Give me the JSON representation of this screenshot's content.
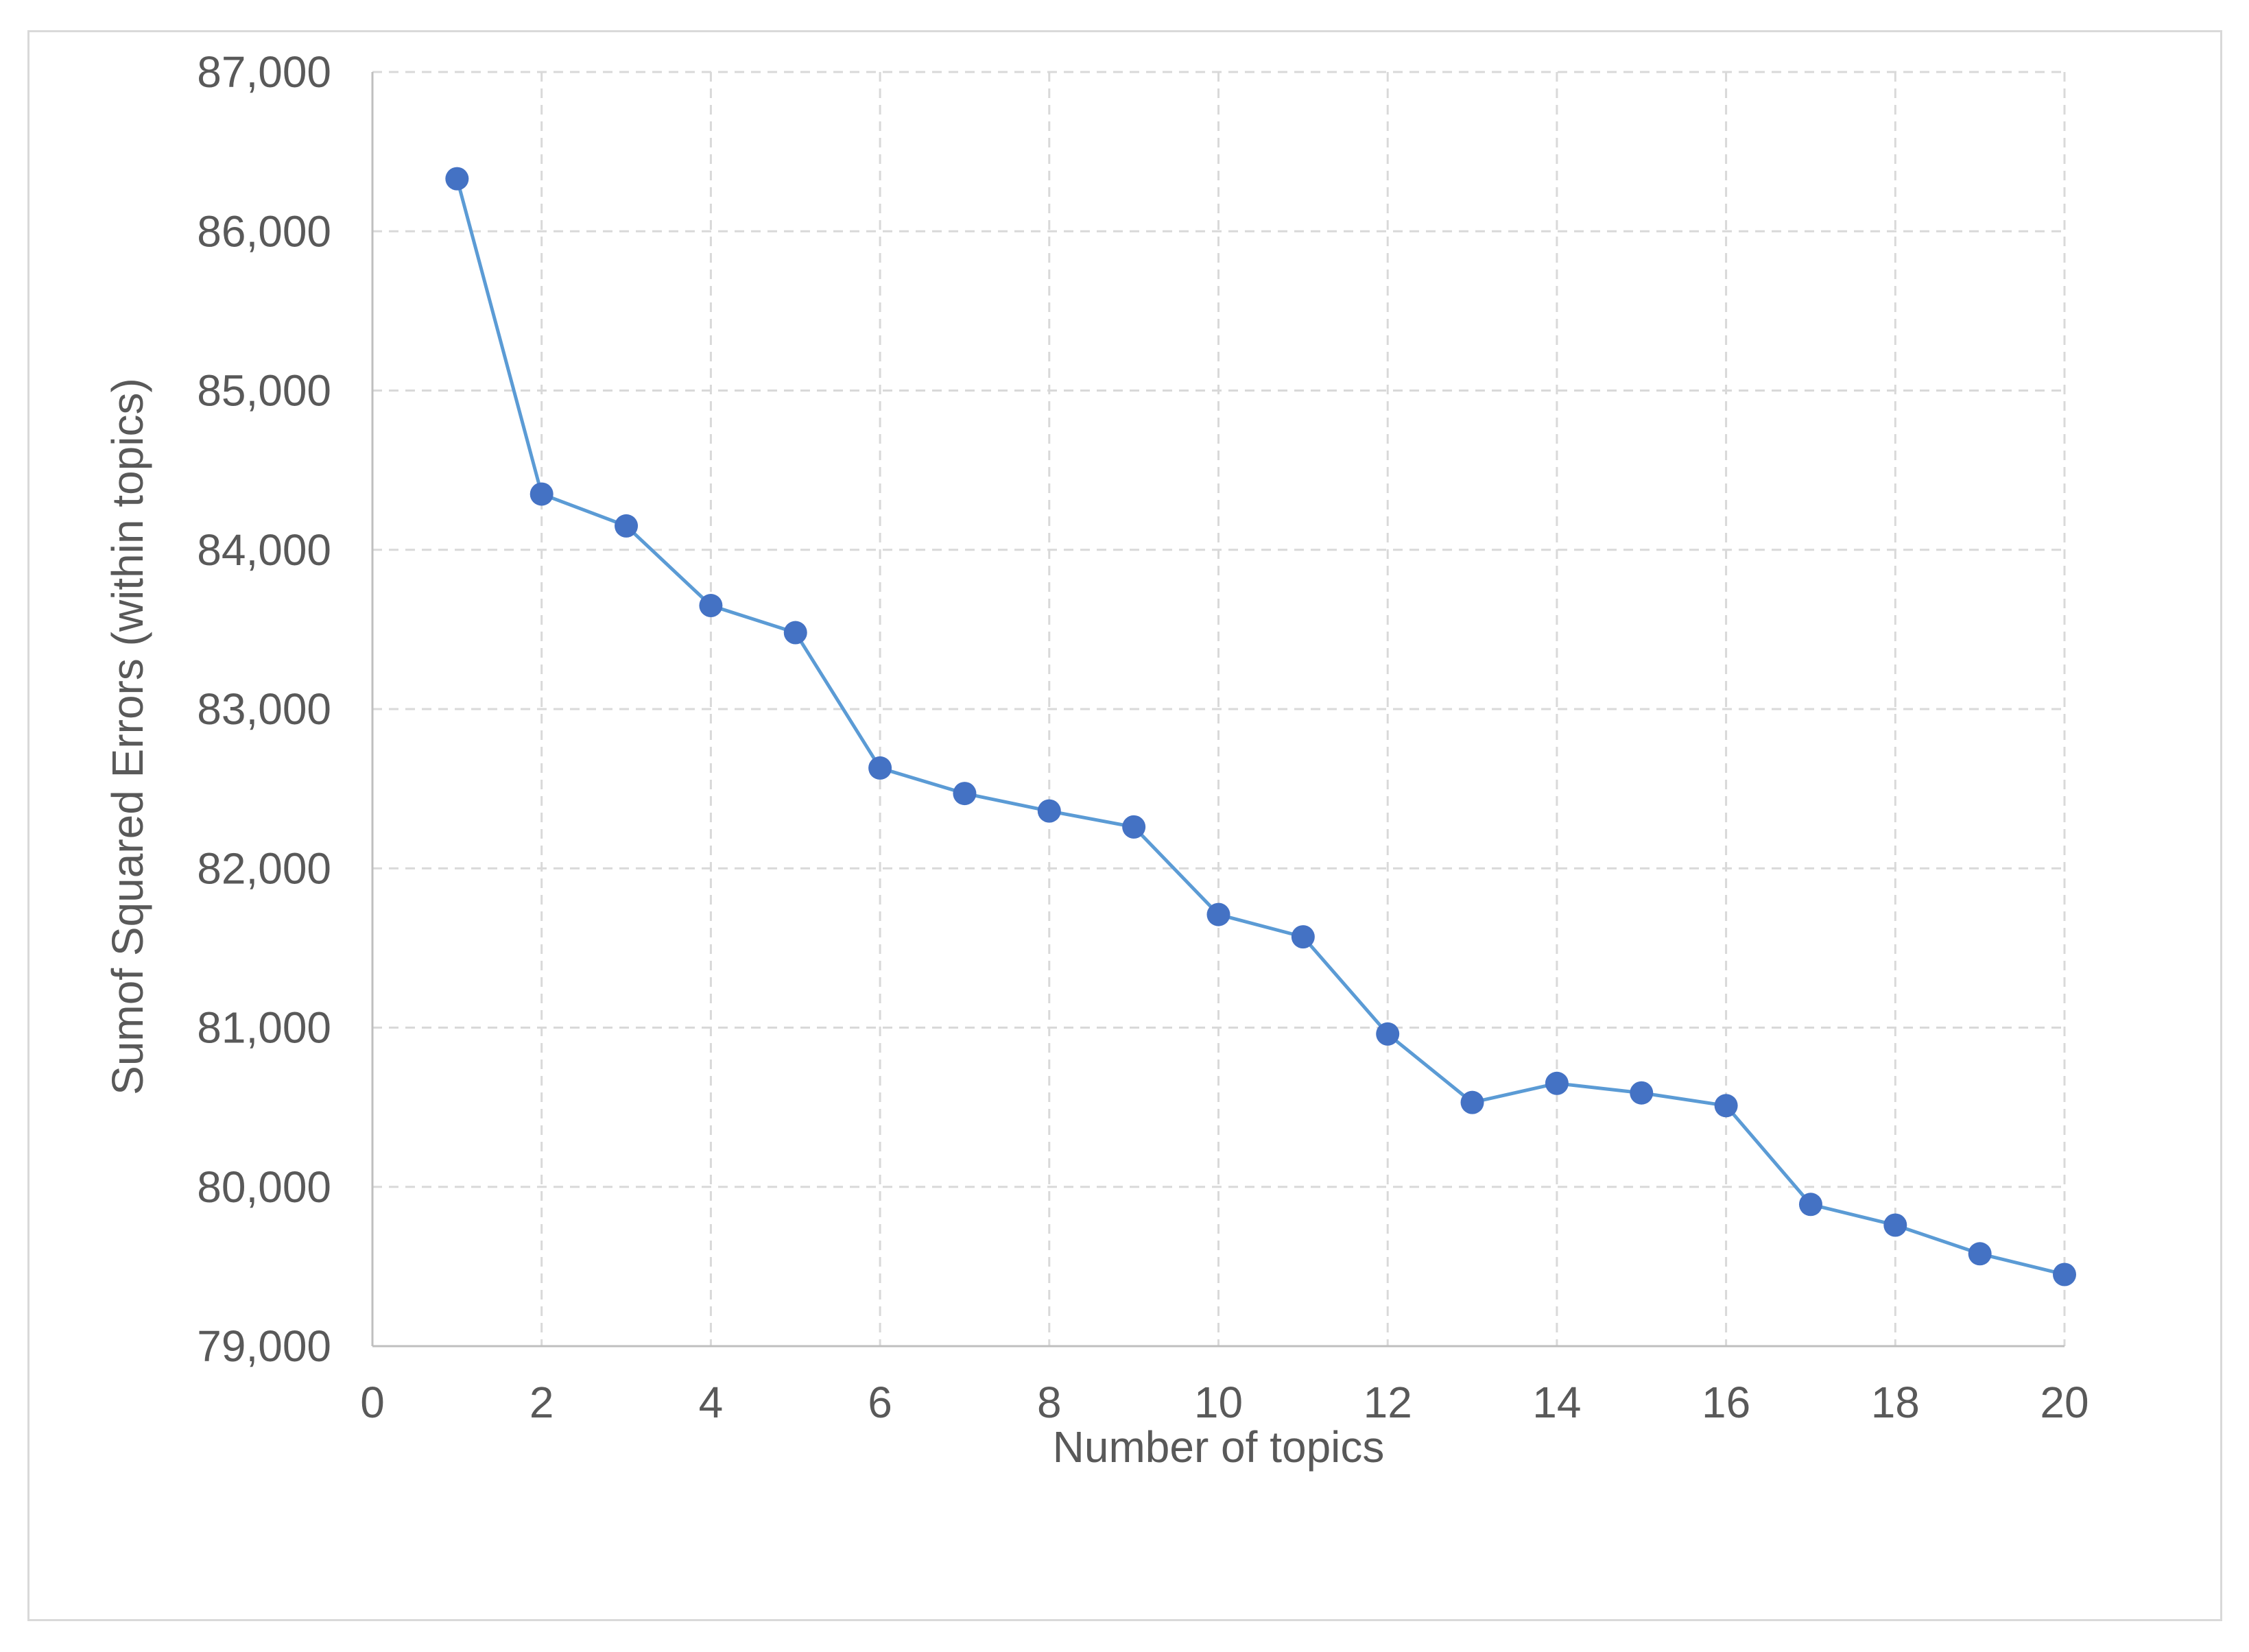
{
  "chart_data": {
    "type": "scatter",
    "title": "",
    "xlabel": "Number of topics",
    "ylabel": "Sumof Squared  Errors (within topics)",
    "xlim": [
      0,
      20
    ],
    "ylim": [
      79000,
      87000
    ],
    "x_ticks": [
      0,
      2,
      4,
      6,
      8,
      10,
      12,
      14,
      16,
      18,
      20
    ],
    "x_tick_labels": [
      "0",
      "2",
      "4",
      "6",
      "8",
      "10",
      "12",
      "14",
      "16",
      "18",
      "20"
    ],
    "y_ticks": [
      79000,
      80000,
      81000,
      82000,
      83000,
      84000,
      85000,
      86000,
      87000
    ],
    "y_tick_labels": [
      "79,000",
      "80,000",
      "81,000",
      "82,000",
      "83,000",
      "84,000",
      "85,000",
      "86,000",
      "87,000"
    ],
    "grid": true,
    "legend": "none",
    "series": [
      {
        "color": "#4472c4",
        "line_color": "#5b9bd5",
        "x": [
          1,
          2,
          3,
          4,
          5,
          6,
          7,
          8,
          9,
          10,
          11,
          12,
          13,
          14,
          15,
          16,
          17,
          18,
          19,
          20
        ],
        "y": [
          86330,
          84350,
          84150,
          83650,
          83480,
          82630,
          82470,
          82360,
          82260,
          81710,
          81570,
          80960,
          80530,
          80650,
          80590,
          80510,
          79890,
          79760,
          79580,
          79450
        ]
      }
    ]
  }
}
